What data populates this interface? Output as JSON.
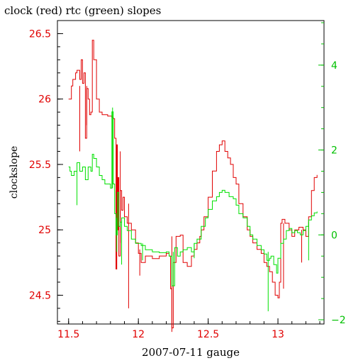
{
  "colors": {
    "clock": "#e00000",
    "rtc": "#00e000",
    "right_axis": "#00c000",
    "axis": "#000000"
  },
  "chart_data": {
    "type": "line",
    "title": "clock (red) rtc (green) slopes",
    "xlabel": "2007-07-11 gauge",
    "ylabel": "clockslope",
    "xlim": [
      11.42,
      13.33
    ],
    "ylim_left": [
      24.28,
      26.6
    ],
    "ylim_right": [
      -2.1,
      5.05
    ],
    "x_ticks": [
      11.5,
      12,
      12.5,
      13
    ],
    "x_tick_labels": [
      "11.5",
      "12",
      "12.5",
      "13"
    ],
    "y_left_ticks": [
      24.5,
      25,
      25.5,
      26,
      26.5
    ],
    "y_left_tick_labels": [
      "24.5",
      "25",
      "25.5",
      "26",
      "26.5"
    ],
    "y_right_ticks": [
      -2,
      0,
      2,
      4
    ],
    "y_right_tick_labels": [
      "−2",
      "0",
      "2",
      "4"
    ],
    "series": [
      {
        "name": "clock",
        "axis": "left",
        "x": [
          11.5,
          11.52,
          11.53,
          11.55,
          11.56,
          11.58,
          11.59,
          11.6,
          11.61,
          11.62,
          11.63,
          11.64,
          11.65,
          11.66,
          11.67,
          11.68,
          11.7,
          11.72,
          11.74,
          11.78,
          11.81,
          11.82,
          11.83,
          11.84,
          11.845,
          11.85,
          11.855,
          11.86,
          11.87,
          11.88,
          11.89,
          11.9,
          11.92,
          11.95,
          11.98,
          12.0,
          12.02,
          12.05,
          12.1,
          12.15,
          12.2,
          12.22,
          12.23,
          12.24,
          12.25,
          12.27,
          12.3,
          12.32,
          12.35,
          12.38,
          12.4,
          12.42,
          12.44,
          12.45,
          12.47,
          12.5,
          12.53,
          12.56,
          12.58,
          12.6,
          12.62,
          12.64,
          12.66,
          12.68,
          12.7,
          12.72,
          12.75,
          12.78,
          12.8,
          12.82,
          12.85,
          12.88,
          12.9,
          12.92,
          12.94,
          12.96,
          12.98,
          13.0,
          13.01,
          13.02,
          13.03,
          13.05,
          13.08,
          13.1,
          13.12,
          13.15,
          13.18,
          13.2,
          13.22,
          13.24,
          13.26,
          13.28
        ],
        "y": [
          26.0,
          26.1,
          26.15,
          26.2,
          26.22,
          26.15,
          26.3,
          26.12,
          26.2,
          25.7,
          26.08,
          26.0,
          25.88,
          25.9,
          26.45,
          26.3,
          26.0,
          25.9,
          25.88,
          25.87,
          25.86,
          25.85,
          25.7,
          24.7,
          25.65,
          25.0,
          25.4,
          24.8,
          25.3,
          25.15,
          25.25,
          25.1,
          25.05,
          25.0,
          24.9,
          24.82,
          24.75,
          24.8,
          24.78,
          24.8,
          24.82,
          24.8,
          24.55,
          24.25,
          24.75,
          24.95,
          24.96,
          24.75,
          24.72,
          24.8,
          24.85,
          24.9,
          24.95,
          25.0,
          25.1,
          25.25,
          25.45,
          25.6,
          25.65,
          25.68,
          25.6,
          25.55,
          25.5,
          25.4,
          25.35,
          25.2,
          25.1,
          25.0,
          24.95,
          24.9,
          24.85,
          24.82,
          24.75,
          24.72,
          24.68,
          24.6,
          24.5,
          24.48,
          24.6,
          25.05,
          25.08,
          25.05,
          25.0,
          24.95,
          25.0,
          25.02,
          25.0,
          24.95,
          25.1,
          25.3,
          25.4,
          25.42
        ]
      },
      {
        "name": "rtc",
        "axis": "right",
        "x": [
          11.5,
          11.51,
          11.52,
          11.54,
          11.56,
          11.58,
          11.6,
          11.62,
          11.64,
          11.66,
          11.67,
          11.68,
          11.7,
          11.72,
          11.74,
          11.76,
          11.78,
          11.8,
          11.81,
          11.82,
          11.83,
          11.84,
          11.85,
          11.86,
          11.87,
          11.88,
          11.9,
          11.92,
          11.95,
          11.98,
          12.0,
          12.02,
          12.05,
          12.1,
          12.15,
          12.2,
          12.22,
          12.24,
          12.26,
          12.28,
          12.3,
          12.32,
          12.35,
          12.38,
          12.4,
          12.42,
          12.45,
          12.48,
          12.5,
          12.53,
          12.56,
          12.58,
          12.6,
          12.62,
          12.65,
          12.68,
          12.7,
          12.72,
          12.75,
          12.78,
          12.8,
          12.82,
          12.85,
          12.88,
          12.9,
          12.92,
          12.94,
          12.95,
          12.97,
          12.99,
          13.0,
          13.02,
          13.04,
          13.06,
          13.08,
          13.1,
          13.12,
          13.14,
          13.16,
          13.18,
          13.2,
          13.22,
          13.24,
          13.26,
          13.28
        ],
        "y": [
          1.6,
          1.5,
          1.4,
          1.5,
          1.7,
          1.5,
          1.6,
          1.3,
          1.6,
          1.5,
          1.9,
          1.8,
          1.6,
          1.4,
          1.3,
          1.2,
          1.2,
          1.1,
          2.9,
          1.2,
          0.5,
          0.0,
          1.0,
          0.2,
          0.3,
          0.4,
          0.2,
          0.1,
          -0.1,
          -0.2,
          -0.2,
          -0.25,
          -0.35,
          -0.4,
          -0.42,
          -0.4,
          -0.5,
          -1.2,
          -0.3,
          -0.5,
          -0.4,
          -0.35,
          -0.3,
          -0.4,
          -0.2,
          -0.1,
          0.2,
          0.4,
          0.6,
          0.8,
          0.9,
          1.0,
          1.05,
          1.0,
          0.9,
          0.85,
          0.7,
          0.5,
          0.4,
          0.2,
          0.0,
          -0.1,
          -0.25,
          -0.35,
          -0.45,
          -0.6,
          -0.55,
          -0.5,
          -0.7,
          -0.9,
          -0.55,
          -0.2,
          -0.1,
          0.1,
          0.15,
          0.05,
          0.1,
          0.05,
          0.0,
          0.1,
          0.2,
          0.35,
          0.45,
          0.52,
          0.55
        ]
      }
    ],
    "spikes": {
      "clock": [
        {
          "x": 11.58,
          "from": 26.1,
          "to": 25.6
        },
        {
          "x": 11.63,
          "from": 26.1,
          "to": 25.8
        },
        {
          "x": 11.84,
          "from": 25.3,
          "to": 24.7
        },
        {
          "x": 11.87,
          "from": 25.6,
          "to": 24.9
        },
        {
          "x": 11.93,
          "from": 25.2,
          "to": 24.4
        },
        {
          "x": 12.01,
          "from": 24.85,
          "to": 24.65
        },
        {
          "x": 12.24,
          "from": 24.95,
          "to": 24.22
        },
        {
          "x": 13.04,
          "from": 25.05,
          "to": 24.55
        },
        {
          "x": 13.17,
          "from": 25.0,
          "to": 24.75
        }
      ],
      "rtc": [
        {
          "x": 11.56,
          "from": 1.5,
          "to": 0.7
        },
        {
          "x": 11.815,
          "from": 1.1,
          "to": 3.0
        },
        {
          "x": 11.845,
          "from": 0.4,
          "to": -0.4
        },
        {
          "x": 11.88,
          "from": 0.3,
          "to": -0.7
        },
        {
          "x": 12.03,
          "from": -0.2,
          "to": -0.6
        },
        {
          "x": 12.25,
          "from": -0.4,
          "to": -1.2
        },
        {
          "x": 12.4,
          "from": -0.2,
          "to": -0.55
        },
        {
          "x": 12.93,
          "from": -0.4,
          "to": -1.8
        },
        {
          "x": 13.22,
          "from": 0.3,
          "to": -0.6
        }
      ]
    }
  }
}
